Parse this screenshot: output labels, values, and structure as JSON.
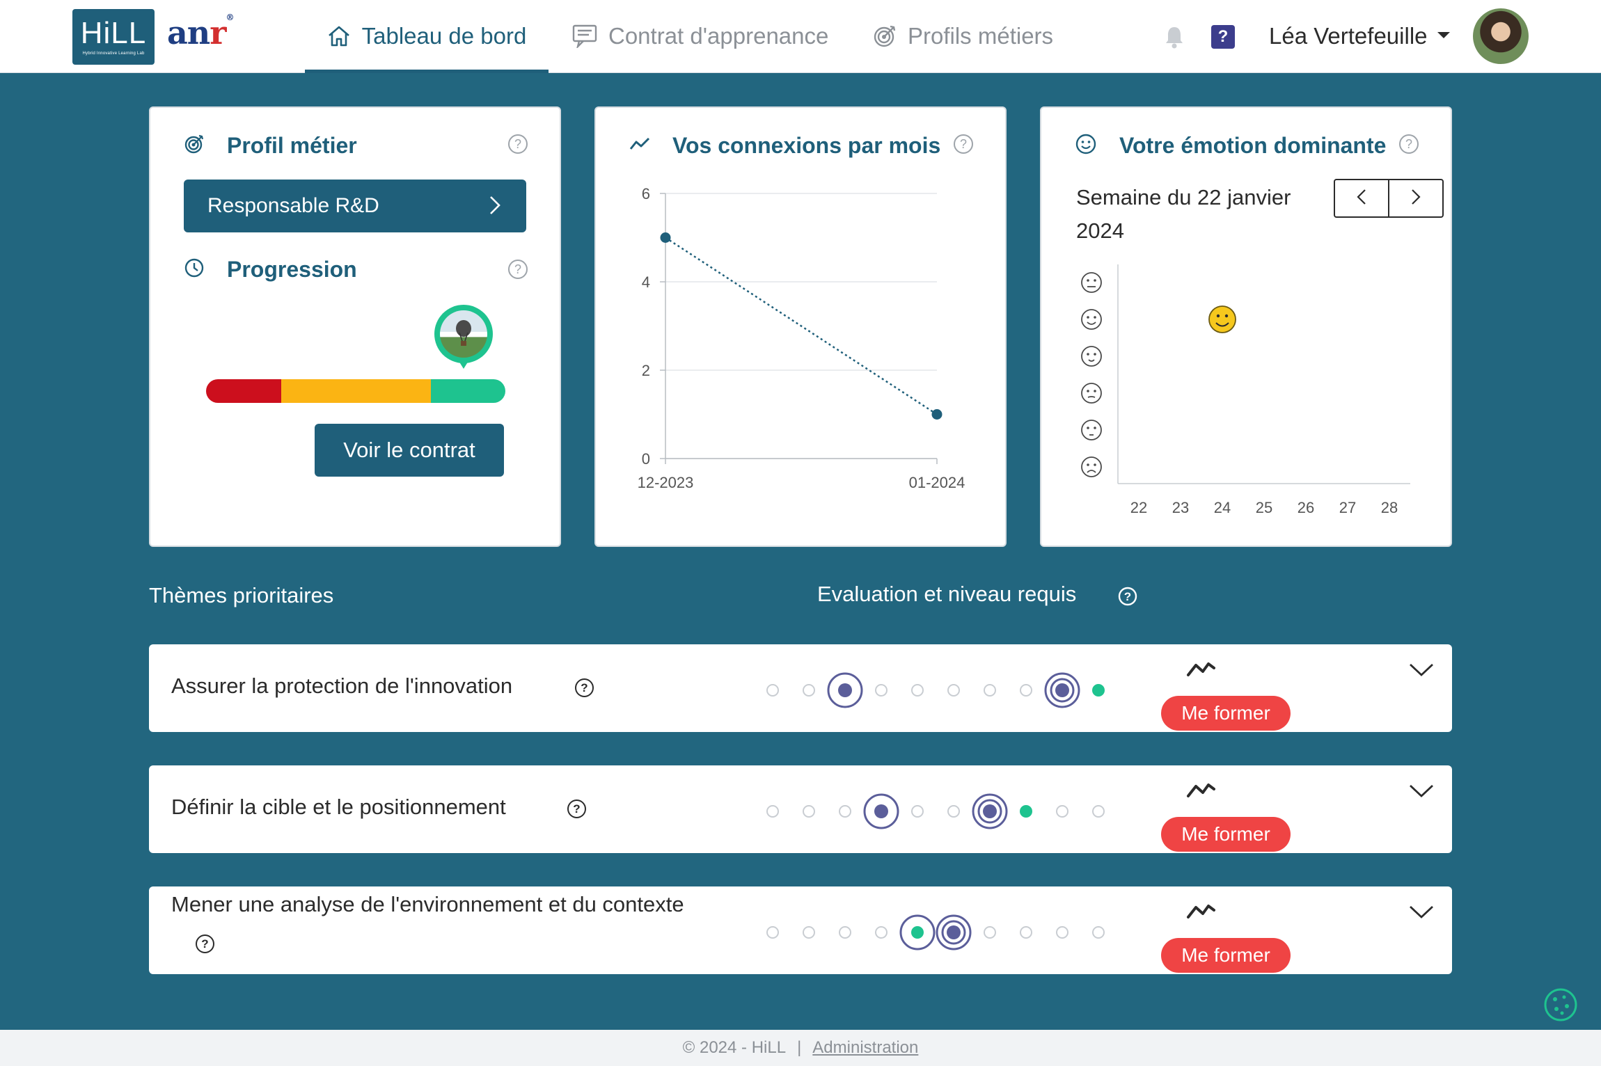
{
  "brand": {
    "hill_logo": "HiLL",
    "hill_tagline": "Hybrid Innovative Learning Lab",
    "anr_logo_a": "an",
    "anr_logo_r": "r",
    "anr_reg": "®"
  },
  "nav": {
    "tabs": [
      {
        "label": "Tableau de bord",
        "icon": "home-icon",
        "active": true
      },
      {
        "label": "Contrat d'apprenance",
        "icon": "contract-icon",
        "active": false
      },
      {
        "label": "Profils métiers",
        "icon": "target-icon",
        "active": false
      }
    ],
    "help_label": "?",
    "user_name": "Léa Vertefeuille"
  },
  "cards": {
    "profile": {
      "title": "Profil métier",
      "job_label": "Responsable R&D",
      "progress_title": "Progression",
      "progress_value": 0.86,
      "progress_segments": [
        {
          "share": 0.25,
          "color": "#cc0f1d"
        },
        {
          "share": 0.5,
          "color": "#fbb413"
        },
        {
          "share": 0.25,
          "color": "#1ec38f"
        }
      ],
      "contract_button": "Voir le contrat"
    },
    "connections": {
      "title": "Vos connexions par mois"
    },
    "emotion": {
      "title": "Votre émotion dominante",
      "week_label": "Semaine du 22 janvier 2024"
    }
  },
  "chart_data": [
    {
      "type": "line",
      "title": "Vos connexions par mois",
      "categories": [
        "12-2023",
        "01-2024"
      ],
      "series": [
        {
          "values": [
            5,
            1
          ]
        }
      ],
      "ylim": [
        0,
        6
      ],
      "yticks": [
        0,
        2,
        4,
        6
      ],
      "line_style": "dotted",
      "grid": true,
      "color": "#1f5f7a"
    },
    {
      "type": "scatter",
      "title": "Votre émotion dominante",
      "x_ticks": [
        22,
        23,
        24,
        25,
        26,
        27,
        28
      ],
      "y_categories": [
        "emotion-1",
        "emotion-2",
        "emotion-3",
        "emotion-4",
        "emotion-5",
        "emotion-6"
      ],
      "points": [
        {
          "x": 24,
          "y": "emotion-2"
        }
      ]
    }
  ],
  "themes": {
    "title": "Thèmes prioritaires",
    "evaluation_title": "Evaluation et niveau requis",
    "items": [
      {
        "label": "Assurer la protection de l'innovation",
        "evaluation": 3,
        "required": 9,
        "current": 10,
        "levels": 10,
        "action": "Me former"
      },
      {
        "label": "Définir la cible et le positionnement",
        "evaluation": 4,
        "required": 7,
        "current": 8,
        "levels": 10,
        "action": "Me former"
      },
      {
        "label": "Mener une analyse de l'environnement et du contexte",
        "evaluation": 5,
        "required": 6,
        "current": 5,
        "levels": 10,
        "action": "Me former"
      }
    ]
  },
  "footer": {
    "copyright": "© 2024 - HiLL",
    "separator": "|",
    "admin_link": "Administration"
  },
  "colors": {
    "primary": "#1f5f7a",
    "background": "#22667f",
    "accent_green": "#1ec38f",
    "danger": "#ef4444",
    "level_ring": "#5b5e9a"
  }
}
